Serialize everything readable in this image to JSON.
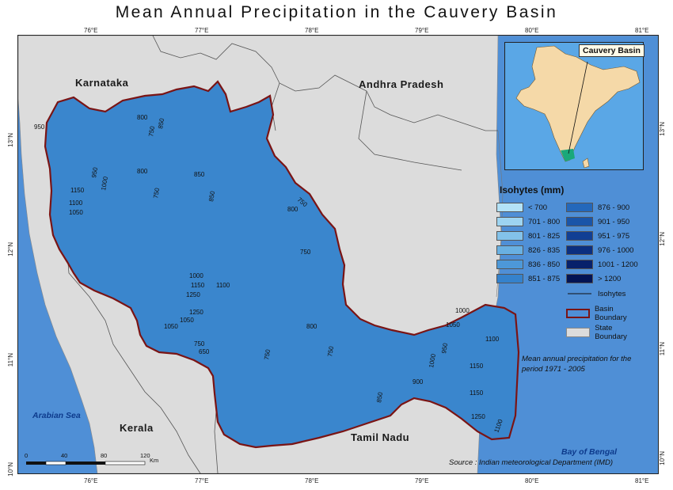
{
  "title": "Mean Annual Precipitation in the Cauvery Basin",
  "axes": {
    "top_longitudes": [
      "76°E",
      "77°E",
      "78°E",
      "79°E",
      "80°E",
      "81°E"
    ],
    "bottom_longitudes": [
      "76°E",
      "77°E",
      "78°E",
      "79°E",
      "80°E",
      "81°E"
    ],
    "left_latitudes": [
      "13°N",
      "12°N",
      "11°N",
      "10°N"
    ],
    "right_latitudes": [
      "13°N",
      "12°N",
      "11°N",
      "10°N"
    ]
  },
  "places": {
    "karnataka": "Karnataka",
    "andhra_pradesh": "Andhra Pradesh",
    "kerala": "Kerala",
    "tamil_nadu": "Tamil Nadu"
  },
  "seas": {
    "arabian_sea": "Arabian Sea",
    "bay_of_bengal": "Bay of Bengal"
  },
  "inset": {
    "label": "Cauvery Basin"
  },
  "legend": {
    "title": "Isohytes (mm)",
    "classes_left": [
      {
        "label": "< 700",
        "color": "#b3e2f7"
      },
      {
        "label": "701 - 800",
        "color": "#9dd4f1"
      },
      {
        "label": "801 - 825",
        "color": "#83c2ea"
      },
      {
        "label": "826 - 835",
        "color": "#69b0e2"
      },
      {
        "label": "836 - 850",
        "color": "#4d98d8"
      },
      {
        "label": "851 - 875",
        "color": "#3582cc"
      }
    ],
    "classes_right": [
      {
        "label": "876 - 900",
        "color": "#2468bb"
      },
      {
        "label": "901 - 950",
        "color": "#1a55a8"
      },
      {
        "label": "951 - 975",
        "color": "#113f94"
      },
      {
        "label": "976 - 1000",
        "color": "#0b2f80"
      },
      {
        "label": "1001 - 1200",
        "color": "#07216b"
      },
      {
        "label": "> 1200",
        "color": "#031454"
      }
    ],
    "isohytes": "Isohytes",
    "basin_boundary": "Basin Boundary",
    "state_boundary": "State Boundary"
  },
  "note": "Mean annual precipitation for the period 1971 - 2005",
  "source": "Source : Indian meteorological Department (IMD)",
  "scale": {
    "ticks": [
      "0",
      "40",
      "80",
      "120"
    ],
    "unit": "Km"
  },
  "contour_labels": [
    "800",
    "750",
    "850",
    "800",
    "750",
    "1000",
    "950",
    "1150",
    "1100",
    "1050",
    "950",
    "850",
    "750",
    "800",
    "750",
    "850",
    "1000",
    "1150",
    "1250",
    "1100",
    "1050",
    "1250",
    "1050",
    "800",
    "750",
    "650",
    "750",
    "750",
    "850",
    "900",
    "1000",
    "1050",
    "1100",
    "1150",
    "1150",
    "1250",
    "1000",
    "950",
    "1100"
  ]
}
